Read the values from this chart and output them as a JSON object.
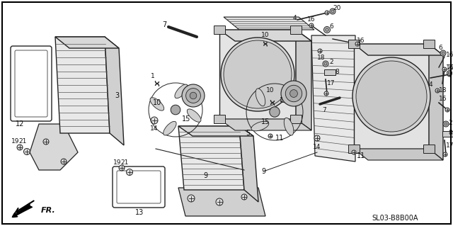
{
  "bg_color": "#ffffff",
  "diagram_code": "SL03-B8B00A",
  "fr_label": "FR.",
  "line_color": "#222222",
  "fill_color": "#e8e8e8",
  "fin_color": "#555555"
}
